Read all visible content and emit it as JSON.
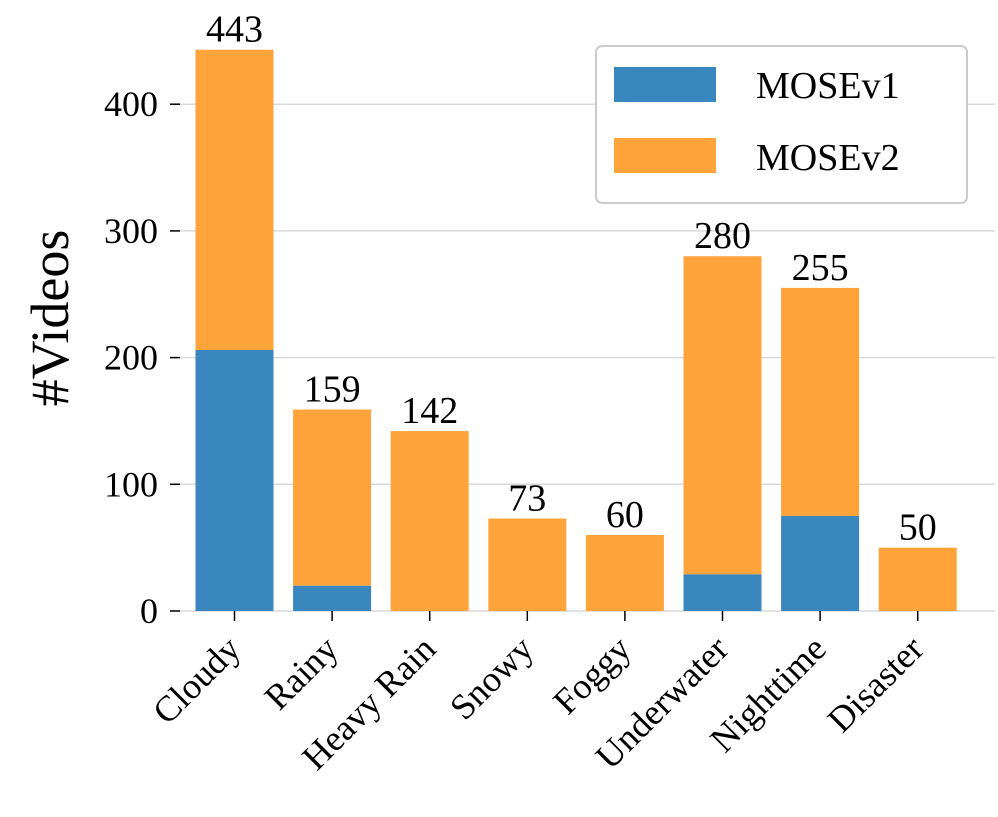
{
  "chart_data": {
    "type": "bar",
    "stacked": true,
    "title": "",
    "xlabel": "",
    "ylabel": "#Videos",
    "ylim": [
      0,
      450
    ],
    "yticks": [
      0,
      100,
      200,
      300,
      400
    ],
    "grid": "horizontal",
    "legend_position": "top-right",
    "categories": [
      "Cloudy",
      "Rainy",
      "Heavy Rain",
      "Snowy",
      "Foggy",
      "Underwater",
      "Nighttime",
      "Disaster"
    ],
    "series": [
      {
        "name": "MOSEv1",
        "color": "#3a87c0",
        "values": [
          206,
          20,
          0,
          0,
          0,
          29,
          75,
          0
        ]
      },
      {
        "name": "MOSEv2",
        "color": "#ffa43a",
        "values": [
          237,
          139,
          142,
          73,
          60,
          251,
          180,
          50
        ]
      }
    ],
    "totals": [
      443,
      159,
      142,
      73,
      60,
      280,
      255,
      50
    ]
  }
}
